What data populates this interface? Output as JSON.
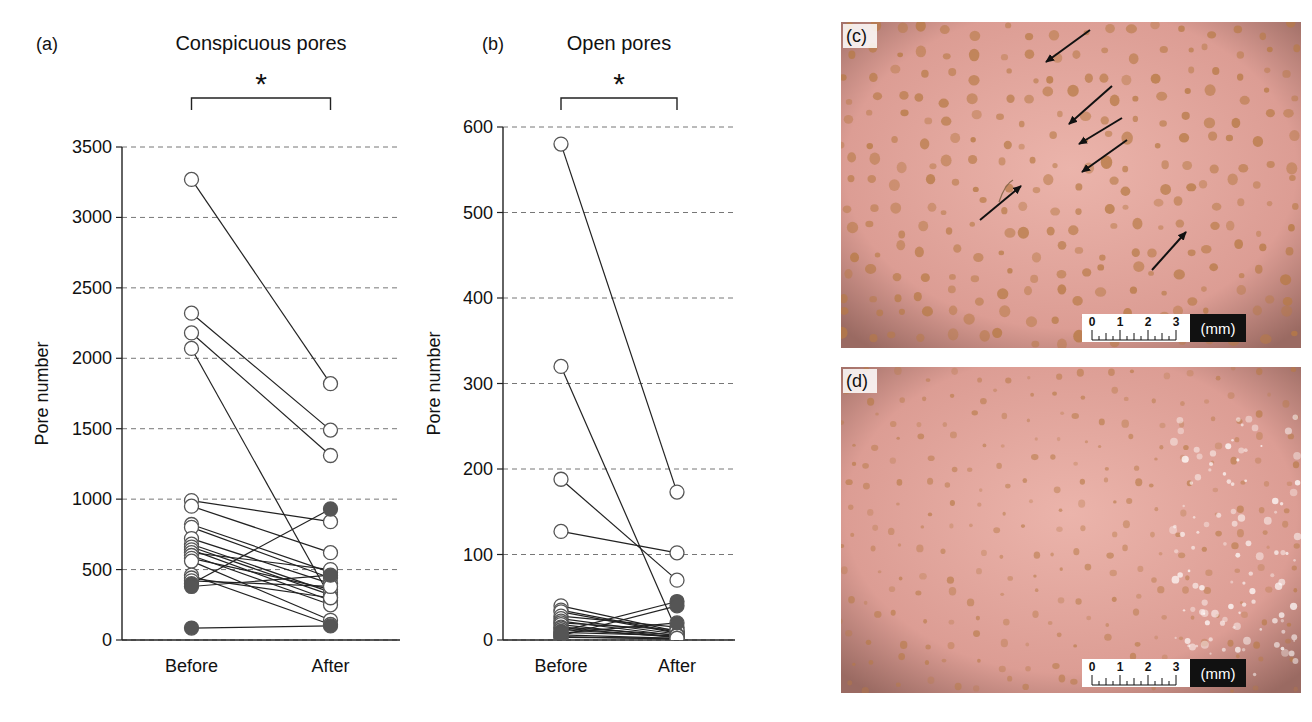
{
  "chart_data": [
    {
      "type": "line",
      "panel_label": "(a)",
      "title": "Conspicuous pores",
      "annotation": "*",
      "ylabel": "Pore number",
      "categories": [
        "Before",
        "After"
      ],
      "ylim": [
        0,
        3500
      ],
      "yticks": [
        0,
        500,
        1000,
        1500,
        2000,
        2500,
        3000,
        3500
      ],
      "grid": true,
      "series": [
        {
          "color": "#555555",
          "marker": "open-circle",
          "values": [
            3270,
            1820
          ]
        },
        {
          "color": "#555555",
          "marker": "open-circle",
          "values": [
            2320,
            1490
          ]
        },
        {
          "color": "#555555",
          "marker": "open-circle",
          "values": [
            2180,
            1310
          ]
        },
        {
          "color": "#555555",
          "marker": "open-circle",
          "values": [
            2070,
            300
          ]
        },
        {
          "color": "#555555",
          "marker": "open-circle",
          "values": [
            990,
            840
          ]
        },
        {
          "color": "#555555",
          "marker": "open-circle",
          "values": [
            950,
            620
          ]
        },
        {
          "color": "#555555",
          "marker": "open-circle",
          "values": [
            820,
            480
          ]
        },
        {
          "color": "#555555",
          "marker": "open-circle",
          "values": [
            800,
            440
          ]
        },
        {
          "color": "#555555",
          "marker": "open-circle",
          "values": [
            720,
            400
          ]
        },
        {
          "color": "#555555",
          "marker": "open-circle",
          "values": [
            680,
            340
          ]
        },
        {
          "color": "#555555",
          "marker": "open-circle",
          "values": [
            660,
            320
          ]
        },
        {
          "color": "#555555",
          "marker": "open-circle",
          "values": [
            640,
            280
          ]
        },
        {
          "color": "#555555",
          "marker": "open-circle",
          "values": [
            620,
            500
          ]
        },
        {
          "color": "#555555",
          "marker": "open-circle",
          "values": [
            600,
            250
          ]
        },
        {
          "color": "#555555",
          "marker": "open-circle",
          "values": [
            580,
            360
          ]
        },
        {
          "color": "#555555",
          "marker": "open-circle",
          "values": [
            560,
            140
          ]
        },
        {
          "color": "#555555",
          "marker": "open-circle",
          "values": [
            460,
            110
          ]
        },
        {
          "color": "#555555",
          "marker": "open-circle",
          "values": [
            440,
            300
          ]
        },
        {
          "color": "#555555",
          "marker": "open-circle",
          "values": [
            420,
            380
          ]
        },
        {
          "color": "#555555",
          "marker": "filled-circle",
          "values": [
            400,
            930
          ]
        },
        {
          "color": "#555555",
          "marker": "filled-circle",
          "values": [
            380,
            460
          ]
        },
        {
          "color": "#555555",
          "marker": "filled-circle",
          "values": [
            85,
            100
          ]
        }
      ]
    },
    {
      "type": "line",
      "panel_label": "(b)",
      "title": "Open pores",
      "annotation": "*",
      "ylabel": "Pore number",
      "categories": [
        "Before",
        "After"
      ],
      "ylim": [
        0,
        600
      ],
      "yticks": [
        0,
        100,
        200,
        300,
        400,
        500,
        600
      ],
      "grid": true,
      "series": [
        {
          "color": "#555555",
          "marker": "open-circle",
          "values": [
            580,
            173
          ]
        },
        {
          "color": "#555555",
          "marker": "open-circle",
          "values": [
            320,
            10
          ]
        },
        {
          "color": "#555555",
          "marker": "open-circle",
          "values": [
            188,
            70
          ]
        },
        {
          "color": "#555555",
          "marker": "open-circle",
          "values": [
            127,
            102
          ]
        },
        {
          "color": "#555555",
          "marker": "open-circle",
          "values": [
            40,
            10
          ]
        },
        {
          "color": "#555555",
          "marker": "open-circle",
          "values": [
            35,
            9
          ]
        },
        {
          "color": "#555555",
          "marker": "open-circle",
          "values": [
            33,
            8
          ]
        },
        {
          "color": "#555555",
          "marker": "open-circle",
          "values": [
            28,
            15
          ]
        },
        {
          "color": "#555555",
          "marker": "open-circle",
          "values": [
            25,
            7
          ]
        },
        {
          "color": "#555555",
          "marker": "open-circle",
          "values": [
            22,
            5
          ]
        },
        {
          "color": "#555555",
          "marker": "open-circle",
          "values": [
            20,
            12
          ]
        },
        {
          "color": "#555555",
          "marker": "open-circle",
          "values": [
            18,
            3
          ]
        },
        {
          "color": "#555555",
          "marker": "open-circle",
          "values": [
            15,
            6
          ]
        },
        {
          "color": "#555555",
          "marker": "open-circle",
          "values": [
            14,
            3
          ]
        },
        {
          "color": "#555555",
          "marker": "open-circle",
          "values": [
            12,
            4
          ]
        },
        {
          "color": "#555555",
          "marker": "open-circle",
          "values": [
            9,
            5
          ]
        },
        {
          "color": "#555555",
          "marker": "open-circle",
          "values": [
            6,
            2
          ]
        },
        {
          "color": "#555555",
          "marker": "open-circle",
          "values": [
            4,
            1
          ]
        },
        {
          "color": "#555555",
          "marker": "open-circle",
          "values": [
            3,
            2
          ]
        },
        {
          "color": "#555555",
          "marker": "filled-circle",
          "values": [
            10,
            45
          ]
        },
        {
          "color": "#555555",
          "marker": "filled-circle",
          "values": [
            5,
            40
          ]
        },
        {
          "color": "#555555",
          "marker": "filled-circle",
          "values": [
            8,
            20
          ]
        }
      ]
    }
  ],
  "photos": [
    {
      "panel_label": "(c)",
      "scale_labels": [
        0,
        1,
        2,
        3
      ],
      "scale_unit": "(mm)"
    },
    {
      "panel_label": "(d)",
      "scale_labels": [
        0,
        1,
        2,
        3
      ],
      "scale_unit": "(mm)"
    }
  ]
}
